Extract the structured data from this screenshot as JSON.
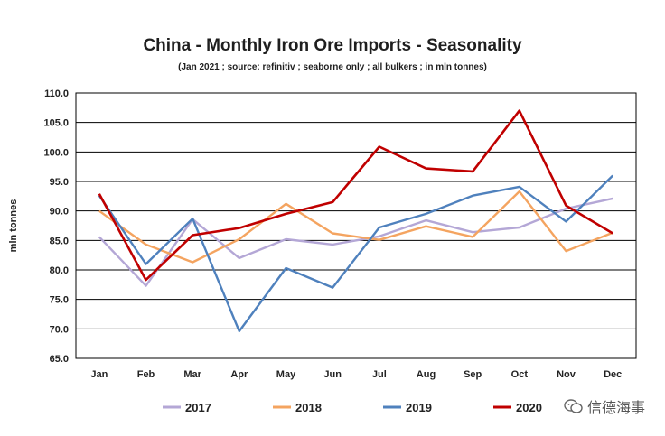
{
  "chart_data": {
    "type": "line",
    "title": "China - Monthly Iron Ore Imports - Seasonality",
    "subtitle": "(Jan 2021 ; source: refinitiv ; seaborne only ; all bulkers ; in mln tonnes)",
    "ylabel": "mln tonnes",
    "xlabel": "",
    "categories": [
      "Jan",
      "Feb",
      "Mar",
      "Apr",
      "May",
      "Jun",
      "Jul",
      "Aug",
      "Sep",
      "Oct",
      "Nov",
      "Dec"
    ],
    "ylim": [
      65.0,
      110.0
    ],
    "yticks": [
      "65.0",
      "70.0",
      "75.0",
      "80.0",
      "85.0",
      "90.0",
      "95.0",
      "100.0",
      "105.0",
      "110.0"
    ],
    "grid": true,
    "legend": "bottom",
    "series": [
      {
        "name": "2017",
        "color": "#b4a7d6",
        "values": [
          85.6,
          77.3,
          88.6,
          82.0,
          85.2,
          84.3,
          85.7,
          88.4,
          86.4,
          87.2,
          90.4,
          92.1
        ]
      },
      {
        "name": "2018",
        "color": "#f4a460",
        "values": [
          90.0,
          84.3,
          81.3,
          85.2,
          91.2,
          86.2,
          85.1,
          87.4,
          85.6,
          93.3,
          83.2,
          86.3
        ]
      },
      {
        "name": "2019",
        "color": "#4f81bd",
        "values": [
          92.6,
          81.0,
          88.7,
          69.6,
          80.3,
          77.0,
          87.2,
          89.5,
          92.6,
          94.1,
          88.2,
          96.0
        ]
      },
      {
        "name": "2020",
        "color": "#c00000",
        "values": [
          92.9,
          78.3,
          85.9,
          87.1,
          89.5,
          91.5,
          100.9,
          97.2,
          96.7,
          107.0,
          90.9,
          86.2
        ]
      }
    ]
  },
  "watermark": {
    "text": "信德海事",
    "icon": "wechat-icon"
  }
}
